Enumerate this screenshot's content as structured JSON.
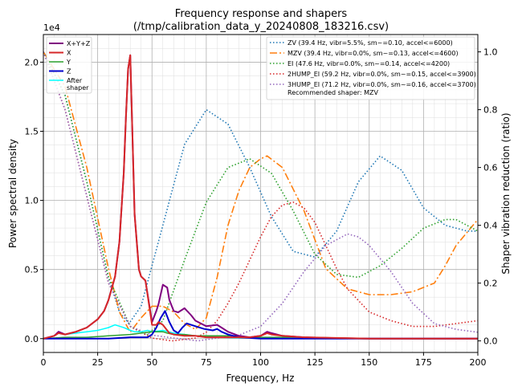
{
  "chart_data": {
    "type": "line",
    "title": "Frequency response and shapers",
    "subtitle": "(/tmp/calibration_data_y_20240808_183216.csv)",
    "xlabel": "Frequency, Hz",
    "ylabel": "Power spectral density",
    "y2label": "Shaper vibration reduction (ratio)",
    "xlim": [
      0,
      200
    ],
    "ylim": [
      -0.1,
      2.2
    ],
    "y2lim": [
      -0.04,
      1.06
    ],
    "y_multiplier": "1e4",
    "x_ticks": [
      0,
      25,
      50,
      75,
      100,
      125,
      150,
      175,
      200
    ],
    "y_ticks": [
      0.0,
      0.5,
      1.0,
      1.5,
      2.0
    ],
    "y_tick_labels": [
      "0.0",
      "0.5",
      "1.0",
      "1.5",
      "2.0"
    ],
    "y2_ticks": [
      0.0,
      0.2,
      0.4,
      0.6,
      0.8,
      1.0
    ],
    "y2_tick_labels": [
      "0.0",
      "0.2",
      "0.4",
      "0.6",
      "0.8",
      "1.0"
    ],
    "grid": true,
    "psd_series": [
      {
        "name": "X+Y+Z",
        "color": "#800080",
        "width": 2,
        "x": [
          0,
          5,
          7,
          10,
          15,
          20,
          25,
          28,
          30,
          33,
          35,
          37,
          38,
          39,
          40,
          42,
          44,
          45,
          47,
          50,
          52,
          53,
          55,
          57,
          58,
          60,
          62,
          65,
          68,
          70,
          75,
          80,
          82,
          85,
          90,
          95,
          100,
          103,
          105,
          110,
          120,
          130,
          150,
          175,
          200
        ],
        "y": [
          0,
          0.02,
          0.05,
          0.03,
          0.05,
          0.08,
          0.14,
          0.2,
          0.28,
          0.45,
          0.7,
          1.2,
          1.6,
          1.95,
          2.05,
          0.9,
          0.5,
          0.45,
          0.42,
          0.12,
          0.2,
          0.25,
          0.39,
          0.37,
          0.28,
          0.2,
          0.19,
          0.22,
          0.17,
          0.13,
          0.09,
          0.1,
          0.08,
          0.05,
          0.02,
          0.01,
          0.02,
          0.05,
          0.04,
          0.02,
          0.01,
          0.005,
          0,
          0,
          0
        ]
      },
      {
        "name": "X",
        "color": "#d62728",
        "width": 2,
        "x": [
          0,
          5,
          7,
          10,
          15,
          20,
          25,
          28,
          30,
          33,
          35,
          37,
          38,
          39,
          40,
          42,
          44,
          45,
          47,
          50,
          52,
          53,
          55,
          57,
          58,
          60,
          65,
          70,
          75,
          80,
          85,
          90,
          95,
          100,
          103,
          105,
          110,
          120,
          150,
          200
        ],
        "y": [
          0,
          0.02,
          0.04,
          0.03,
          0.05,
          0.08,
          0.14,
          0.2,
          0.28,
          0.45,
          0.7,
          1.2,
          1.6,
          1.95,
          2.05,
          0.9,
          0.5,
          0.45,
          0.42,
          0.1,
          0.1,
          0.12,
          0.1,
          0.06,
          0.04,
          0.03,
          0.02,
          0.02,
          0.01,
          0.01,
          0.01,
          0.01,
          0.01,
          0.02,
          0.04,
          0.03,
          0.02,
          0.01,
          0,
          0
        ]
      },
      {
        "name": "Y",
        "color": "#2ca02c",
        "width": 1.5,
        "x": [
          0,
          10,
          20,
          30,
          40,
          45,
          50,
          55,
          57,
          60,
          65,
          70,
          75,
          80,
          85,
          90,
          95,
          100,
          105,
          110,
          120,
          150,
          200
        ],
        "y": [
          0,
          0.01,
          0.01,
          0.02,
          0.03,
          0.04,
          0.05,
          0.05,
          0.04,
          0.03,
          0.03,
          0.02,
          0.02,
          0.02,
          0.02,
          0.02,
          0.01,
          0.01,
          0.01,
          0.01,
          0.01,
          0,
          0
        ]
      },
      {
        "name": "Z",
        "color": "#0000cc",
        "width": 2,
        "x": [
          0,
          10,
          20,
          30,
          40,
          45,
          48,
          50,
          52,
          54,
          56,
          58,
          60,
          62,
          64,
          66,
          70,
          74,
          78,
          80,
          82,
          85,
          90,
          95,
          100,
          110,
          200
        ],
        "y": [
          0,
          0,
          0,
          0,
          0.01,
          0.01,
          0.01,
          0.03,
          0.08,
          0.15,
          0.2,
          0.12,
          0.06,
          0.04,
          0.08,
          0.11,
          0.09,
          0.07,
          0.06,
          0.07,
          0.05,
          0.03,
          0.01,
          0.005,
          0,
          0,
          0
        ]
      },
      {
        "name": "After shaper",
        "color": "#00ffff",
        "width": 1.5,
        "x": [
          0,
          5,
          7,
          10,
          15,
          20,
          25,
          30,
          33,
          35,
          37,
          40,
          42,
          45,
          48,
          50,
          55,
          60,
          65,
          70,
          80,
          90,
          100,
          110,
          200
        ],
        "y": [
          0,
          0.02,
          0.04,
          0.03,
          0.04,
          0.05,
          0.06,
          0.08,
          0.1,
          0.09,
          0.08,
          0.06,
          0.05,
          0.05,
          0.06,
          0.05,
          0.06,
          0.04,
          0.03,
          0.02,
          0.01,
          0.005,
          0.005,
          0,
          0
        ]
      }
    ],
    "shaper_series": [
      {
        "name": "ZV (39.4 Hz, vibr=5.5%, sm~=0.10, accel<=6000)",
        "color": "#1f77b4",
        "dash": "1.5,2.5",
        "x": [
          0,
          10,
          20,
          30,
          35,
          39.4,
          45,
          55,
          65,
          75,
          85,
          95,
          105,
          115,
          125,
          135,
          145,
          155,
          165,
          175,
          185,
          195,
          200
        ],
        "y": [
          1.0,
          0.85,
          0.55,
          0.22,
          0.1,
          0.06,
          0.12,
          0.4,
          0.68,
          0.8,
          0.75,
          0.6,
          0.43,
          0.31,
          0.29,
          0.38,
          0.55,
          0.64,
          0.59,
          0.46,
          0.4,
          0.38,
          0.38
        ]
      },
      {
        "name": "MZV (39.4 Hz, vibr=0.0%, sm~=0.13, accel<=4600)",
        "color": "#ff7f0e",
        "dash": "9,3,2,3",
        "x": [
          0,
          10,
          20,
          30,
          35,
          40,
          45,
          50,
          55,
          60,
          65,
          70,
          75,
          80,
          85,
          90,
          95,
          100,
          103,
          110,
          120,
          130,
          140,
          150,
          160,
          170,
          180,
          185,
          190,
          200
        ],
        "y": [
          1.0,
          0.88,
          0.6,
          0.25,
          0.1,
          0.03,
          0.08,
          0.12,
          0.12,
          0.1,
          0.06,
          0.04,
          0.08,
          0.22,
          0.4,
          0.52,
          0.6,
          0.63,
          0.64,
          0.6,
          0.45,
          0.25,
          0.18,
          0.16,
          0.16,
          0.17,
          0.2,
          0.26,
          0.33,
          0.42
        ]
      },
      {
        "name": "EI (47.6 Hz, vibr=0.0%, sm~=0.14, accel<=4200)",
        "color": "#2ca02c",
        "dash": "1.5,2.5",
        "x": [
          0,
          10,
          20,
          30,
          40,
          47.6,
          55,
          65,
          75,
          85,
          95,
          105,
          115,
          125,
          135,
          145,
          155,
          165,
          175,
          185,
          190,
          200
        ],
        "y": [
          1.0,
          0.85,
          0.55,
          0.22,
          0.05,
          0.02,
          0.07,
          0.28,
          0.48,
          0.6,
          0.63,
          0.58,
          0.45,
          0.3,
          0.23,
          0.22,
          0.26,
          0.32,
          0.39,
          0.42,
          0.42,
          0.38
        ]
      },
      {
        "name": "2HUMP_EI (59.2 Hz, vibr=0.0%, sm~=0.15, accel<=3900)",
        "color": "#d62728",
        "dash": "1.5,2.5",
        "x": [
          0,
          10,
          20,
          30,
          40,
          50,
          59.2,
          70,
          75,
          80,
          85,
          90,
          95,
          100,
          105,
          110,
          115,
          120,
          125,
          130,
          135,
          140,
          150,
          160,
          170,
          180,
          190,
          200
        ],
        "y": [
          1.0,
          0.8,
          0.5,
          0.2,
          0.05,
          0.01,
          0.0,
          0.01,
          0.03,
          0.07,
          0.13,
          0.2,
          0.28,
          0.36,
          0.43,
          0.47,
          0.48,
          0.46,
          0.41,
          0.33,
          0.25,
          0.18,
          0.1,
          0.07,
          0.05,
          0.05,
          0.06,
          0.07
        ]
      },
      {
        "name": "3HUMP_EI (71.2 Hz, vibr=0.0%, sm~=0.16, accel<=3700)",
        "color": "#9467bd",
        "dash": "1.5,2.5",
        "x": [
          0,
          10,
          20,
          30,
          40,
          50,
          60,
          71.2,
          80,
          90,
          100,
          110,
          120,
          130,
          140,
          145,
          150,
          160,
          170,
          180,
          190,
          200
        ],
        "y": [
          1.0,
          0.8,
          0.5,
          0.2,
          0.05,
          0.02,
          0.01,
          0.0,
          0.01,
          0.02,
          0.05,
          0.13,
          0.24,
          0.33,
          0.37,
          0.36,
          0.33,
          0.24,
          0.13,
          0.06,
          0.04,
          0.03
        ]
      }
    ],
    "legend_left": [
      "X+Y+Z",
      "X",
      "Y",
      "Z",
      "After shaper"
    ],
    "legend_right_extra": "Recommended shaper: MZV"
  }
}
